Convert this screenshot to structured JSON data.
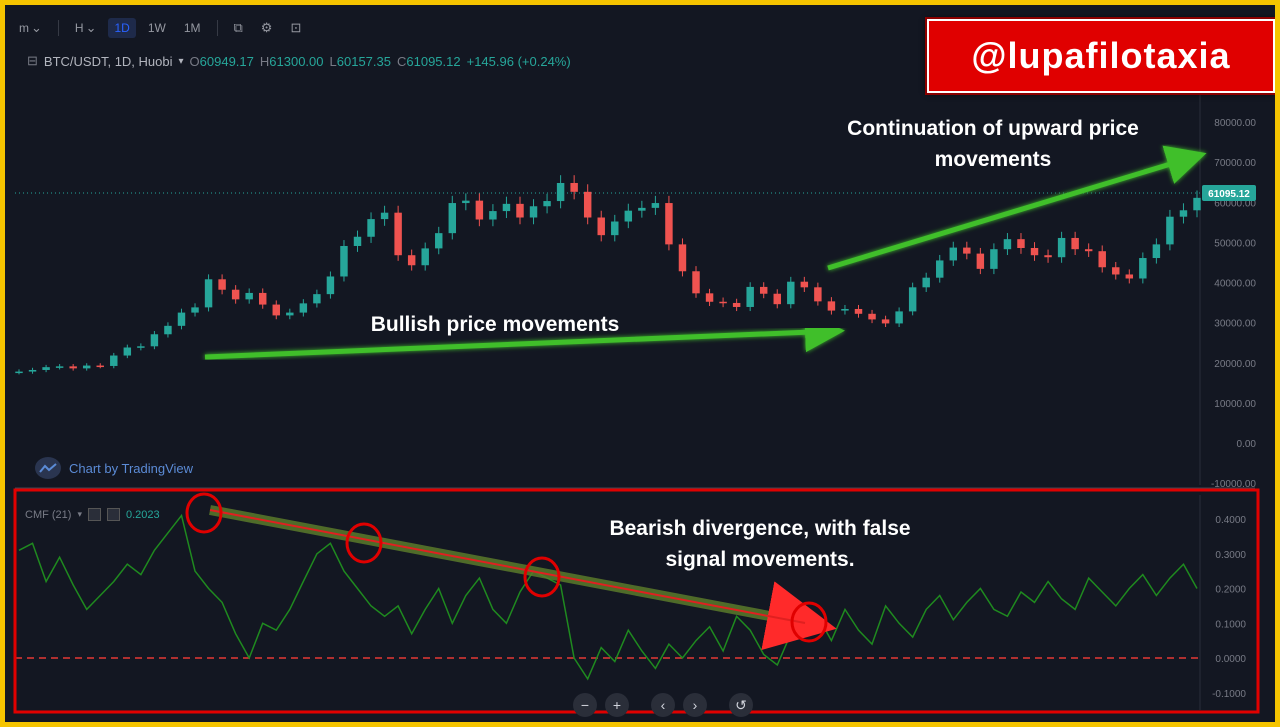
{
  "watermark": "@lupafilotaxia",
  "toolbar": {
    "items": [
      {
        "label": "m",
        "icon": "chevron-down-icon",
        "active": false
      },
      {
        "label": "H",
        "icon": "chevron-down-icon",
        "active": false
      },
      {
        "label": "1D",
        "active": true
      },
      {
        "label": "1W",
        "active": false
      },
      {
        "label": "1M",
        "active": false
      }
    ],
    "icons": [
      "chart-type-icon",
      "indicators-icon",
      "screenshot-icon"
    ]
  },
  "legend": {
    "symbol": "BTC/USDT, 1D, Huobi",
    "o_key": "O",
    "o": "60949.17",
    "h_key": "H",
    "h": "61300.00",
    "l_key": "L",
    "l": "60157.35",
    "c_key": "C",
    "c": "61095.12",
    "change": "+145.96 (+0.24%)"
  },
  "tradingview": "Chart by TradingView",
  "indicator": {
    "name": "CMF (21)",
    "value": "0.2023"
  },
  "annotations": {
    "continuation": "Continuation of upward price movements",
    "bullish": "Bullish price movements",
    "bearish": "Bearish divergence, with false signal movements."
  },
  "price_axis": {
    "labels": [
      "80000.00",
      "70000.00",
      "60000.00",
      "50000.00",
      "40000.00",
      "30000.00",
      "20000.00",
      "10000.00",
      "0.00",
      "-10000.00"
    ],
    "last_price": "61095.12"
  },
  "cmf_axis": {
    "labels": [
      "0.4000",
      "0.3000",
      "0.2000",
      "0.1000",
      "0.0000",
      "-0.1000"
    ]
  },
  "nav": [
    "−",
    "+",
    "‹",
    "›",
    "↺"
  ],
  "colors": {
    "up": "#26a69a",
    "down": "#ef5350",
    "cmf": "#1f8a1f",
    "arrow": "#3fbf2a",
    "highlight": "#e00000",
    "frame": "#f5c400"
  },
  "chart_data": {
    "type": "candlestick",
    "price_series": {
      "name": "BTC/USDT",
      "close": [
        17800,
        18200,
        18900,
        19100,
        18600,
        19300,
        19200,
        21800,
        23800,
        24100,
        27100,
        29200,
        32500,
        33800,
        40800,
        38200,
        35800,
        37400,
        34500,
        31800,
        32500,
        34800,
        37100,
        41500,
        49100,
        51400,
        55800,
        57400,
        46800,
        44300,
        48500,
        52300,
        59800,
        60400,
        55700,
        57800,
        59600,
        56200,
        59000,
        60300,
        64800,
        62600,
        56200,
        51800,
        55200,
        57900,
        58600,
        59800,
        49500,
        42800,
        37300,
        35200,
        34900,
        33900,
        38900,
        37200,
        34600,
        40200,
        38800,
        35300,
        33000,
        33400,
        32200,
        30800,
        29800,
        32800,
        38800,
        41200,
        45500,
        48700,
        47200,
        43400,
        48300,
        50800,
        48600,
        46800,
        46300,
        51100,
        48300,
        47800,
        43800,
        42000,
        41000,
        46100,
        49500,
        56400,
        58000,
        61095
      ]
    },
    "cmf_series": {
      "name": "CMF (21)",
      "values": [
        0.31,
        0.33,
        0.22,
        0.29,
        0.21,
        0.14,
        0.18,
        0.22,
        0.27,
        0.24,
        0.31,
        0.36,
        0.41,
        0.25,
        0.2,
        0.16,
        0.07,
        0.0,
        0.1,
        0.08,
        0.14,
        0.22,
        0.3,
        0.33,
        0.25,
        0.2,
        0.15,
        0.12,
        0.15,
        0.07,
        0.14,
        0.2,
        0.1,
        0.18,
        0.23,
        0.14,
        0.1,
        0.19,
        0.25,
        0.23,
        0.21,
        0.0,
        -0.06,
        0.03,
        -0.01,
        0.08,
        0.02,
        -0.03,
        0.04,
        0.0,
        0.05,
        0.09,
        0.02,
        0.12,
        0.08,
        0.01,
        -0.02,
        0.07,
        0.1,
        0.12,
        0.05,
        0.14,
        0.08,
        0.04,
        0.15,
        0.1,
        0.06,
        0.14,
        0.18,
        0.11,
        0.16,
        0.2,
        0.14,
        0.12,
        0.19,
        0.16,
        0.22,
        0.17,
        0.14,
        0.23,
        0.19,
        0.15,
        0.2,
        0.24,
        0.18,
        0.23,
        0.27,
        0.2
      ]
    },
    "price_ylim": [
      -10000,
      80000
    ],
    "cmf_ylim": [
      -0.1,
      0.4
    ]
  }
}
